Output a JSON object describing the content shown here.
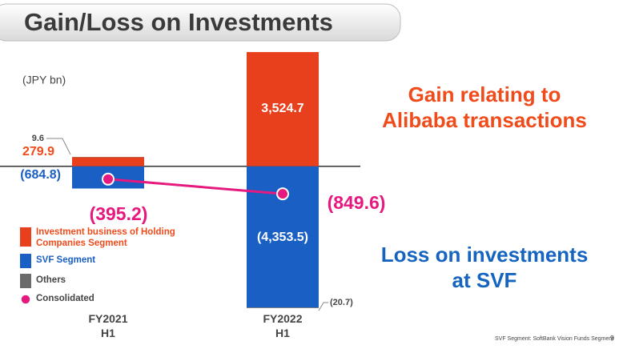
{
  "chart_data": {
    "type": "stacked-bar-line",
    "title": "Gain/Loss on Investments",
    "unit_label": "(JPY bn)",
    "categories": [
      "FY2021\nH1",
      "FY2022\nH1"
    ],
    "ylim": [
      -4500,
      3600
    ],
    "series": [
      {
        "name": "Investment business of Holding Companies Segment",
        "color": "#e8401c",
        "values": [
          279.9,
          3524.7
        ],
        "value_labels": [
          "279.9",
          "3,524.7"
        ]
      },
      {
        "name": "SVF Segment",
        "color": "#1a5fc4",
        "values": [
          -684.8,
          -4353.5
        ],
        "value_labels": [
          "(684.8)",
          "(4,353.5)"
        ]
      },
      {
        "name": "Others",
        "color": "#6b6b6b",
        "values": [
          9.6,
          -20.7
        ],
        "value_labels": [
          "9.6",
          "(20.7)"
        ]
      },
      {
        "name": "Consolidated",
        "color": "#e6197f",
        "type": "line",
        "values": [
          -395.2,
          -849.6
        ],
        "value_labels": [
          "(395.2)",
          "(849.6)"
        ]
      }
    ],
    "annotations": [
      "Gain relating to\nAlibaba transactions",
      "Loss on investments\nat SVF"
    ],
    "footnote": "SVF Segment: SoftBank Vision Funds Segment",
    "page_number": "9"
  }
}
